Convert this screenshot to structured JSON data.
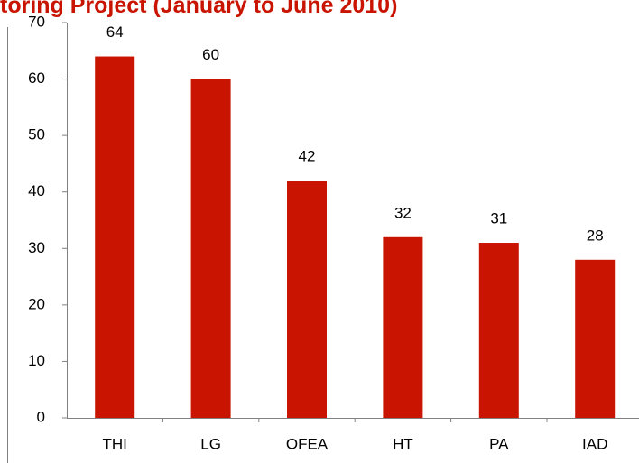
{
  "chart_data": {
    "type": "bar",
    "title": "toring Project (January to June 2010)",
    "categories": [
      "THI",
      "LG",
      "OFEA",
      "HT",
      "PA",
      "IAD"
    ],
    "values": [
      64,
      60,
      42,
      32,
      31,
      28
    ],
    "color": "#c81400",
    "ylim": [
      0,
      70
    ],
    "yticks": [
      0,
      10,
      20,
      30,
      40,
      50,
      60,
      70
    ],
    "grid": false
  }
}
